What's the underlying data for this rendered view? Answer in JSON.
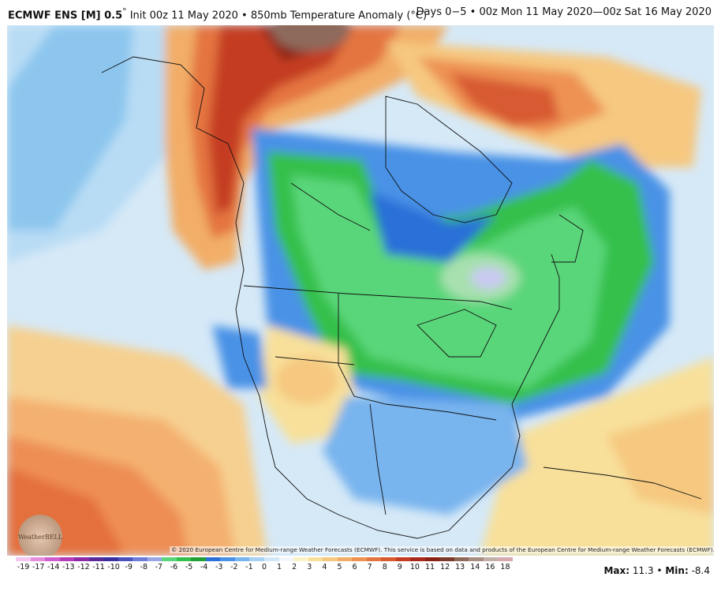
{
  "header": {
    "model": "ECMWF ENS [M] 0.5",
    "degree_mark": "°",
    "init": "Init 00z 11 May 2020",
    "bullet": "•",
    "variable": "850mb Temperature Anomaly (°C)",
    "valid": "Days 0−5 • 00z Mon 11 May 2020—00z Sat 16 May 2020"
  },
  "logo": {
    "text": "WeatherBELL"
  },
  "copyright": "© 2020 European Centre for Medium-range Weather Forecasts (ECMWF). This service is based on data and products of the European Centre for Medium-range Weather Forecasts (ECMWF).",
  "colorbar": {
    "labels": [
      "-19",
      "-17",
      "-14",
      "-13",
      "-12",
      "-11",
      "-10",
      "-9",
      "-8",
      "-7",
      "-6",
      "-5",
      "-4",
      "-3",
      "-2",
      "-1",
      "0",
      "1",
      "2",
      "3",
      "4",
      "5",
      "6",
      "7",
      "8",
      "9",
      "10",
      "11",
      "12",
      "13",
      "14",
      "16",
      "18"
    ],
    "colors": [
      "#f5c6f0",
      "#e58ee0",
      "#d05ed0",
      "#b43cb8",
      "#8c2aa8",
      "#5a2a9a",
      "#3a2ea0",
      "#4a52c0",
      "#6e7ed8",
      "#9aa6e6",
      "#5ad67a",
      "#34c04c",
      "#1fa035",
      "#2a70d8",
      "#4a92e6",
      "#78b4ee",
      "#a8d2f4",
      "#d2e8f8",
      "#f4f6fb",
      "#fbf2c8",
      "#f8e09a",
      "#f6c880",
      "#f2ae68",
      "#ee9252",
      "#e47440",
      "#d85a30",
      "#c43c22",
      "#a82a1a",
      "#8a2214",
      "#7a3a2e",
      "#8e6a5c",
      "#a68e82",
      "#c2b0a8",
      "#d8a8b0"
    ]
  },
  "stats": {
    "max_label": "Max:",
    "max_value": "11.3",
    "sep": "•",
    "min_label": "Min:",
    "min_value": "-8.4"
  }
}
